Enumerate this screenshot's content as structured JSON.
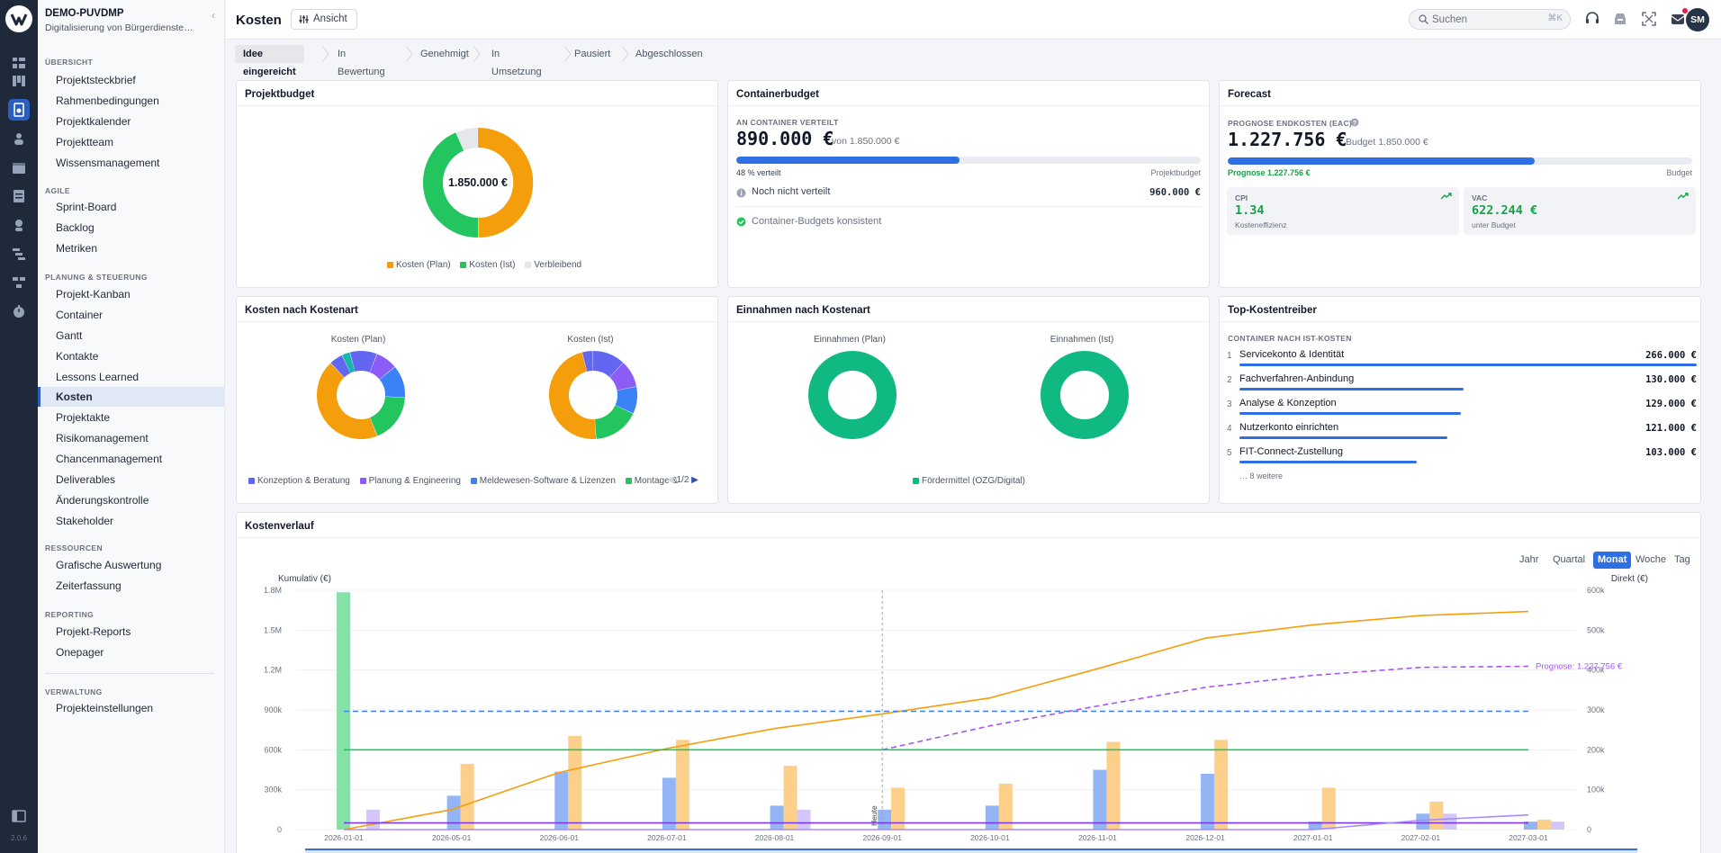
{
  "rail": {
    "version": "2.0.6"
  },
  "sidebar": {
    "project_code": "DEMO-PUVDMP",
    "project_name": "Digitalisierung von Bürgerdienste…",
    "sections": [
      {
        "title": "ÜBERSICHT",
        "items": [
          "Projektsteckbrief",
          "Rahmenbedingungen",
          "Projektkalender",
          "Projektteam",
          "Wissensmanagement"
        ]
      },
      {
        "title": "AGILE",
        "items": [
          "Sprint-Board",
          "Backlog",
          "Metriken"
        ]
      },
      {
        "title": "PLANUNG & STEUERUNG",
        "items": [
          "Projekt-Kanban",
          "Container",
          "Gantt",
          "Kontakte",
          "Lessons Learned",
          "Kosten",
          "Projektakte",
          "Risikomanagement",
          "Chancenmanagement",
          "Deliverables",
          "Änderungskontrolle",
          "Stakeholder"
        ]
      },
      {
        "title": "RESSOURCEN",
        "items": [
          "Grafische Auswertung",
          "Zeiterfassung"
        ]
      },
      {
        "title": "REPORTING",
        "items": [
          "Projekt-Reports",
          "Onepager"
        ]
      },
      {
        "title": "VERWALTUNG",
        "items": [
          "Projekteinstellungen"
        ]
      }
    ],
    "active_item": "Kosten"
  },
  "header": {
    "title": "Kosten",
    "view_button": "Ansicht",
    "search_placeholder": "Suchen",
    "search_shortcut": "⌘K",
    "avatar_initials": "SM"
  },
  "stages": {
    "items": [
      "Idee eingereicht",
      "In Bewertung",
      "Genehmigt",
      "In Umsetzung",
      "Pausiert",
      "Abgeschlossen"
    ],
    "active": "Idee eingereicht"
  },
  "projektbudget": {
    "title": "Projektbudget",
    "center": "1.850.000 €",
    "legend": [
      "Kosten (Plan)",
      "Kosten (Ist)",
      "Verbleibend"
    ],
    "colors": [
      "#f59e0b",
      "#22c55e",
      "#e5e7eb"
    ],
    "chart_data": {
      "type": "pie",
      "labels": [
        "Kosten (Plan)",
        "Kosten (Ist)",
        "Verbleibend"
      ],
      "values": [
        0.5,
        0.435,
        0.065
      ]
    }
  },
  "containerbudget": {
    "title": "Containerbudget",
    "label": "AN CONTAINER VERTEILT",
    "value": "890.000 €",
    "of_text": "von 1.850.000 €",
    "progress": 0.48,
    "progress_label": "48 % verteilt",
    "progress_right": "Projektbudget",
    "unassigned_label": "Noch nicht verteilt",
    "unassigned_value": "960.000 €",
    "consistent_label": "Container-Budgets konsistent"
  },
  "forecast": {
    "title": "Forecast",
    "label": "PROGNOSE ENDKOSTEN (EAC)",
    "value": "1.227.756 €",
    "budget_text": "Budget 1.850.000 €",
    "progress": 0.66,
    "progress_left": "Prognose 1.227.756 €",
    "progress_right": "Budget",
    "cpi": {
      "label": "CPI",
      "value": "1.34",
      "sub": "Kosteneffizienz"
    },
    "vac": {
      "label": "VAC",
      "value": "622.244 €",
      "sub": "unter Budget"
    }
  },
  "kosten_nach_kostenart": {
    "title": "Kosten nach Kostenart",
    "plan_label": "Kosten (Plan)",
    "ist_label": "Kosten (Ist)",
    "legend": [
      "Konzeption & Beratung",
      "Planung & Engineering",
      "Meldewesen-Software & Lizenzen",
      "Montage &"
    ],
    "legend_colors": [
      "#6366f1",
      "#8b5cf6",
      "#3b82f6",
      "#22c55e"
    ],
    "pager": "1/2",
    "chart_data": [
      {
        "type": "pie",
        "title": "Kosten (Plan)",
        "values": [
          0.1,
          0.08,
          0.12,
          0.18,
          0.44,
          0.05,
          0.03
        ],
        "colors": [
          "#6366f1",
          "#8b5cf6",
          "#3b82f6",
          "#22c55e",
          "#f59e0b",
          "#6366f1",
          "#14b8a6"
        ]
      },
      {
        "type": "pie",
        "title": "Kosten (Ist)",
        "values": [
          0.12,
          0.1,
          0.1,
          0.17,
          0.47,
          0.04
        ],
        "colors": [
          "#6366f1",
          "#8b5cf6",
          "#3b82f6",
          "#22c55e",
          "#f59e0b",
          "#6366f1"
        ]
      }
    ]
  },
  "einnahmen": {
    "title": "Einnahmen nach Kostenart",
    "plan_label": "Einnahmen (Plan)",
    "ist_label": "Einnahmen (Ist)",
    "legend": [
      "Fördermittel (OZG/Digital)"
    ],
    "color": "#10b981"
  },
  "top_kostentreiber": {
    "title": "Top-Kostentreiber",
    "label": "CONTAINER NACH IST-KOSTEN",
    "items": [
      {
        "rank": "1",
        "name": "Servicekonto & Identität",
        "value": "266.000 €",
        "share": 1.0
      },
      {
        "rank": "2",
        "name": "Fachverfahren-Anbindung",
        "value": "130.000 €",
        "share": 0.49
      },
      {
        "rank": "3",
        "name": "Analyse & Konzeption",
        "value": "129.000 €",
        "share": 0.485
      },
      {
        "rank": "4",
        "name": "Nutzerkonto einrichten",
        "value": "121.000 €",
        "share": 0.455
      },
      {
        "rank": "5",
        "name": "FIT-Connect-Zustellung",
        "value": "103.000 €",
        "share": 0.387
      }
    ],
    "more": "… 8 weitere"
  },
  "kostenverlauf": {
    "title": "Kostenverlauf",
    "granularity": [
      "Jahr",
      "Quartal",
      "Monat",
      "Woche",
      "Tag"
    ],
    "active_granularity": "Monat",
    "left_axis_label": "Kumulativ (€)",
    "right_axis_label": "Direkt (€)",
    "today_label": "Heute",
    "forecast_label": "Prognose: 1.227.756 €",
    "chart_data": {
      "type": "line",
      "x": [
        "2026-01-01",
        "2026-05-01",
        "2026-06-01",
        "2026-07-01",
        "2026-08-01",
        "2026-09-01",
        "2026-10-01",
        "2026-11-01",
        "2026-12-01",
        "2027-01-01",
        "2027-02-01",
        "2027-03-01"
      ],
      "left_ticks": [
        "0",
        "300k",
        "600k",
        "900k",
        "1.2M",
        "1.5M",
        "1.8M"
      ],
      "right_ticks": [
        "0",
        "100k",
        "200k",
        "300k",
        "400k",
        "500k",
        "600k"
      ],
      "ylim_left": [
        0,
        1800000
      ],
      "ylim_right": [
        0,
        600000
      ],
      "series": [
        {
          "axis": "left",
          "style": "line",
          "color": "#f59e0b",
          "values": [
            0,
            150000,
            430000,
            610000,
            760000,
            870000,
            990000,
            1210000,
            1440000,
            1540000,
            1610000,
            1640000
          ]
        },
        {
          "axis": "left",
          "style": "dashed",
          "color": "#a855f7",
          "values": [
            null,
            null,
            null,
            null,
            null,
            600000,
            780000,
            930000,
            1070000,
            1160000,
            1220000,
            1228000
          ]
        },
        {
          "axis": "left",
          "style": "dashed",
          "color": "#3b82f6",
          "values": [
            890000,
            890000,
            890000,
            890000,
            890000,
            890000,
            890000,
            890000,
            890000,
            890000,
            890000,
            890000
          ]
        },
        {
          "axis": "left",
          "style": "line",
          "color": "#22c55e",
          "values": [
            600000,
            600000,
            600000,
            600000,
            600000,
            600000,
            600000,
            600000,
            600000,
            600000,
            600000,
            600000
          ]
        },
        {
          "axis": "left",
          "style": "line",
          "color": "#7c3aed",
          "values": [
            50000,
            50000,
            50000,
            50000,
            50000,
            50000,
            50000,
            50000,
            50000,
            50000,
            50000,
            50000
          ]
        },
        {
          "axis": "left",
          "style": "line",
          "color": "#a78bfa",
          "values": [
            0,
            0,
            0,
            0,
            0,
            0,
            0,
            0,
            0,
            0,
            70000,
            110000
          ]
        },
        {
          "axis": "right",
          "style": "bar",
          "color": "#93b4f5",
          "values": [
            0,
            85000,
            145000,
            130000,
            60000,
            50000,
            60000,
            150000,
            140000,
            20000,
            40000,
            20000
          ]
        },
        {
          "axis": "right",
          "style": "bar",
          "color": "#fcd08a",
          "values": [
            0,
            165000,
            235000,
            225000,
            160000,
            105000,
            115000,
            220000,
            225000,
            105000,
            70000,
            25000
          ]
        },
        {
          "axis": "right",
          "style": "bar",
          "color": "#d4c5fb",
          "values": [
            50000,
            0,
            0,
            0,
            50000,
            0,
            0,
            0,
            0,
            0,
            40000,
            20000
          ]
        },
        {
          "axis": "right",
          "style": "bar",
          "color": "#86e0a8",
          "values": [
            595000,
            0,
            0,
            0,
            0,
            0,
            0,
            0,
            0,
            0,
            0,
            0
          ]
        }
      ]
    }
  }
}
